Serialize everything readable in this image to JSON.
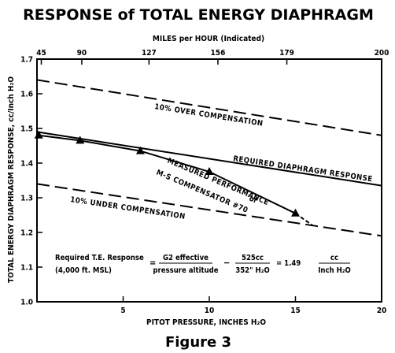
{
  "chart_data": {
    "type": "line",
    "title": "RESPONSE of TOTAL ENERGY DIAPHRAGM",
    "figure_caption": "Figure 3",
    "xlabel": "PITOT PRESSURE, INCHES H₂O",
    "x2label": "MILES per HOUR (Indicated)",
    "ylabel": "TOTAL ENERGY DIAPHRAGM RESPONSE, cc/Inch H₂O",
    "xlim": [
      0,
      20
    ],
    "ylim": [
      1.0,
      1.7
    ],
    "x_ticks": [
      5,
      10,
      15,
      20
    ],
    "x_tick_labels": [
      "5",
      "10",
      "15",
      "20"
    ],
    "y_ticks": [
      1.0,
      1.1,
      1.2,
      1.3,
      1.4,
      1.5,
      1.6,
      1.7
    ],
    "y_tick_labels": [
      "1.0",
      "1.1",
      "1.2",
      "1.3",
      "1.4",
      "1.5",
      "1.6",
      "1.7"
    ],
    "top_axis_ticks": [
      {
        "x": 0.25,
        "label": "45"
      },
      {
        "x": 2.6,
        "label": "90"
      },
      {
        "x": 6.5,
        "label": "127"
      },
      {
        "x": 10.5,
        "label": "156"
      },
      {
        "x": 14.5,
        "label": "179"
      },
      {
        "x": 20,
        "label": "200"
      }
    ],
    "series": [
      {
        "name": "10% OVER COMPENSATION",
        "style": "dashed",
        "x": [
          0,
          20
        ],
        "y": [
          1.64,
          1.48
        ]
      },
      {
        "name": "REQUIRED DIAPHRAGM RESPONSE",
        "style": "solid",
        "x": [
          0,
          20
        ],
        "y": [
          1.49,
          1.335
        ]
      },
      {
        "name": "10% UNDER COMPENSATION",
        "style": "dashed",
        "x": [
          0,
          20
        ],
        "y": [
          1.34,
          1.19
        ]
      },
      {
        "name": "MEASURED PERFORMANCE of M-S COMPENSATOR #70",
        "style": "solid",
        "marker": "triangle",
        "x": [
          0.1,
          2.5,
          6,
          10,
          15
        ],
        "y": [
          1.48,
          1.465,
          1.435,
          1.375,
          1.255
        ],
        "tail": {
          "x": [
            15,
            16
          ],
          "y": [
            1.255,
            1.22
          ],
          "style": "dashed"
        }
      }
    ],
    "annotation": {
      "line1": "Required T.E. Response",
      "line2": "(4,000 ft. MSL)",
      "equals1": "=",
      "frac1_num": "G2 effective",
      "frac1_den": "pressure altitude",
      "minus": "−",
      "frac2_num": "525cc",
      "frac2_den": "352\" H₂O",
      "equals2": "= 1.49",
      "frac3_num": "cc",
      "frac3_den": "Inch H₂O"
    },
    "grid": false,
    "line_color": "#000000"
  }
}
